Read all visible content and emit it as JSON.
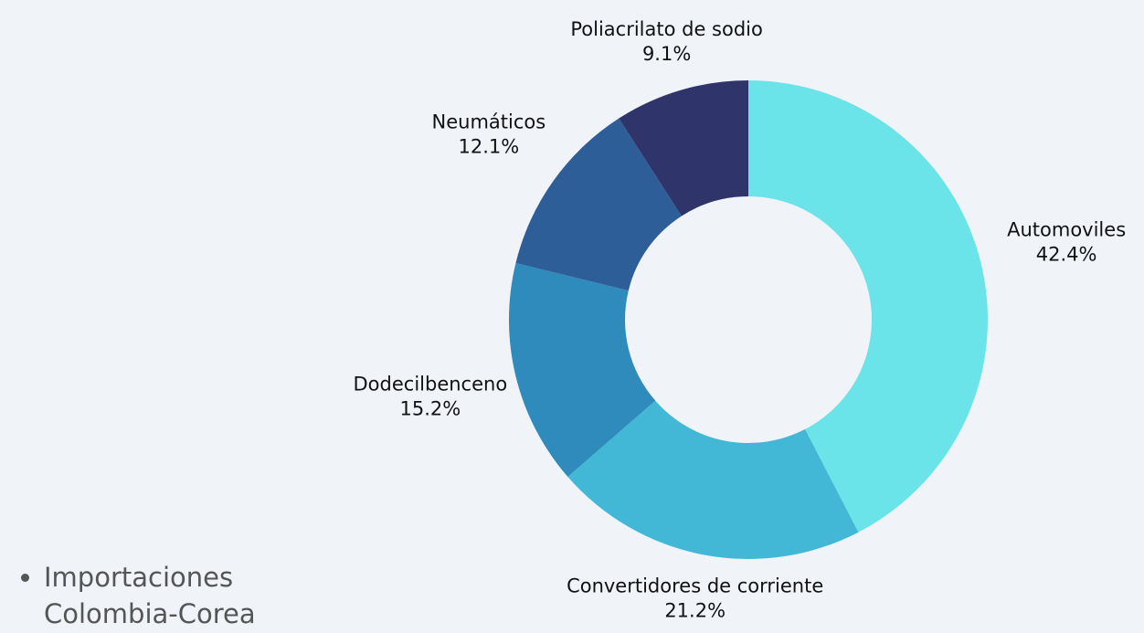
{
  "chart_data": {
    "type": "donut",
    "categories": [
      "Automoviles",
      "Convertidores de corriente",
      "Dodecilbenceno",
      "Neumáticos",
      "Poliacrilato de sodio"
    ],
    "values": [
      42.4,
      21.2,
      15.2,
      12.1,
      9.1
    ],
    "value_labels": [
      "42.4%",
      "21.2%",
      "15.2%",
      "12.1%",
      "9.1%"
    ],
    "colors": [
      "#6ae4e8",
      "#42b8d6",
      "#2e8bbb",
      "#2e5e98",
      "#2f356b"
    ]
  },
  "bullets": [
    "Importaciones Colombia-Corea"
  ]
}
